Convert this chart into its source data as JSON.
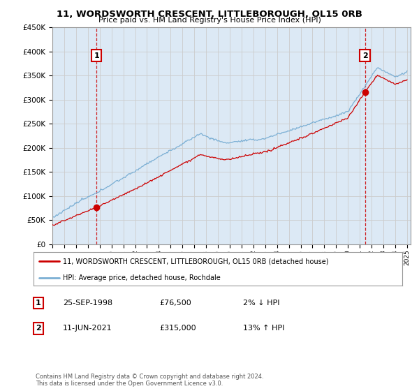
{
  "title": "11, WORDSWORTH CRESCENT, LITTLEBOROUGH, OL15 0RB",
  "subtitle": "Price paid vs. HM Land Registry's House Price Index (HPI)",
  "legend_line1": "11, WORDSWORTH CRESCENT, LITTLEBOROUGH, OL15 0RB (detached house)",
  "legend_line2": "HPI: Average price, detached house, Rochdale",
  "transaction1_date": "25-SEP-1998",
  "transaction1_price": "£76,500",
  "transaction1_hpi": "2% ↓ HPI",
  "transaction2_date": "11-JUN-2021",
  "transaction2_price": "£315,000",
  "transaction2_hpi": "13% ↑ HPI",
  "footnote": "Contains HM Land Registry data © Crown copyright and database right 2024.\nThis data is licensed under the Open Government Licence v3.0.",
  "hpi_color": "#7bafd4",
  "price_color": "#cc0000",
  "marker_color": "#cc0000",
  "dashed_color": "#cc0000",
  "grid_color": "#cccccc",
  "plot_bg_color": "#dce9f5",
  "bg_color": "#ffffff",
  "ylim": [
    0,
    450000
  ],
  "yticks": [
    0,
    50000,
    100000,
    150000,
    200000,
    250000,
    300000,
    350000,
    400000,
    450000
  ],
  "transaction1_year": 1998.73,
  "transaction1_value": 76500,
  "transaction2_year": 2021.44,
  "transaction2_value": 315000
}
